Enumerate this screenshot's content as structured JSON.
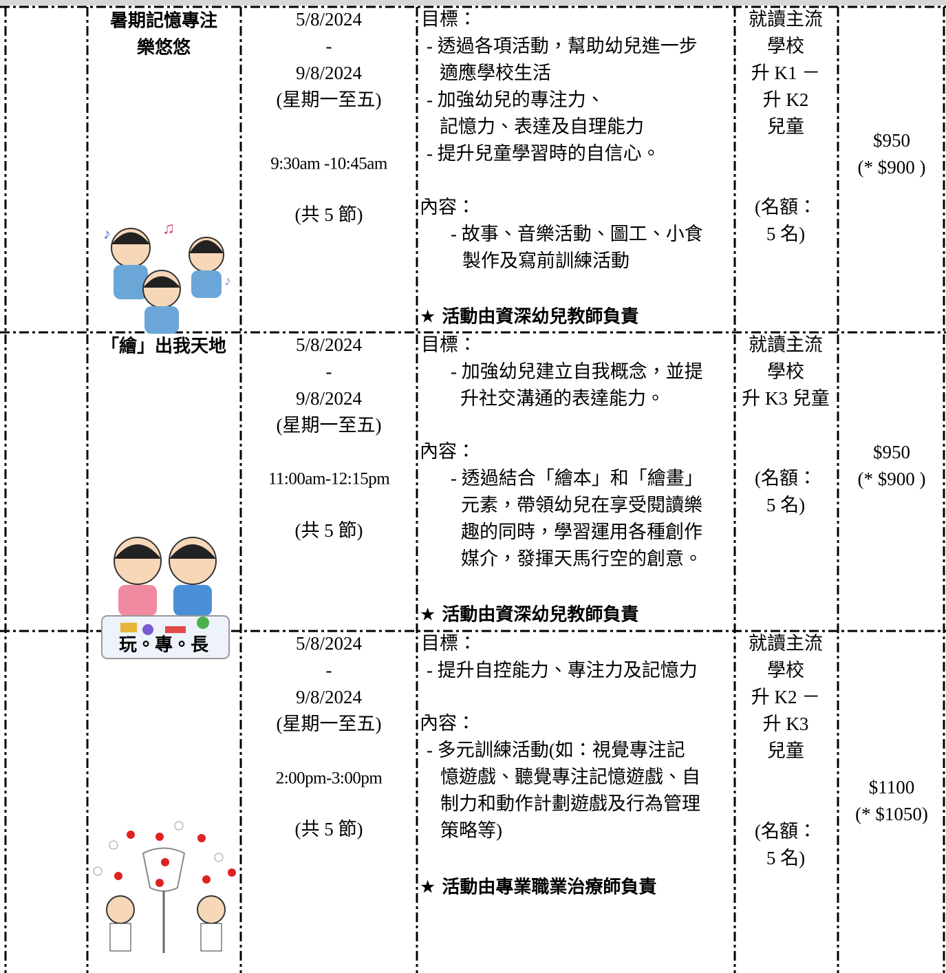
{
  "table": {
    "rows": [
      {
        "name": [
          "暑期記憶專注",
          "樂悠悠"
        ],
        "date": [
          "5/8/2024",
          "-",
          "9/8/2024",
          "(星期一至五)"
        ],
        "time": "9:30am -10:45am",
        "sessions": "(共 5 節)",
        "goals_label": "目標：",
        "goals": [
          "- 透過各項活動，幫助幼兒進一步",
          "適應學校生活",
          "- 加強幼兒的專注力、",
          "記憶力、表達及自理能力",
          "- 提升兒童學習時的自信心。"
        ],
        "content_label": "內容：",
        "content": [
          "- 故事、音樂活動、圖工、小食",
          "製作及寫前訓練活動"
        ],
        "note": "★  活動由資深幼兒教師負責",
        "eligibility": [
          "就讀主流",
          "學校",
          "升 K1 －",
          "升 K2",
          "兒童"
        ],
        "quota": [
          "(名額：",
          "5 名)"
        ],
        "price": "$950",
        "discount_price": "(* $900 )"
      },
      {
        "name": [
          "「繪」出我天地"
        ],
        "date": [
          "5/8/2024",
          "-",
          "9/8/2024",
          "(星期一至五)"
        ],
        "time": "11:00am-12:15pm",
        "sessions": "(共 5 節)",
        "goals_label": "目標：",
        "goals": [
          "- 加強幼兒建立自我概念，並提",
          "升社交溝通的表達能力。"
        ],
        "content_label": "內容：",
        "content": [
          "- 透過結合「繪本」和「繪畫」",
          "元素，帶領幼兒在享受閱讀樂",
          "趣的同時，學習運用各種創作",
          "媒介，發揮天馬行空的創意。"
        ],
        "note": "★  活動由資深幼兒教師負責",
        "eligibility": [
          "就讀主流",
          "學校",
          "升 K3 兒童"
        ],
        "quota": [
          "(名額：",
          "5 名)"
        ],
        "price": "$950",
        "discount_price": "(* $900 )"
      },
      {
        "name": [
          "玩。專。長"
        ],
        "date": [
          "5/8/2024",
          "-",
          "9/8/2024",
          "(星期一至五)"
        ],
        "time": "2:00pm-3:00pm",
        "sessions": "(共 5 節)",
        "goals_label": "目標：",
        "goals": [
          "- 提升自控能力、專注力及記憶力"
        ],
        "content_label": "內容：",
        "content": [
          "- 多元訓練活動(如：視覺專注記",
          "憶遊戲、聽覺專注記憶遊戲、自",
          "制力和動作計劃遊戲及行為管理",
          "策略等)"
        ],
        "note": "★  活動由專業職業治療師負責",
        "eligibility": [
          "就讀主流",
          "學校",
          "升 K2 －",
          "升 K3",
          "兒童"
        ],
        "quota": [
          "(名額：",
          "5 名)"
        ],
        "price": "$1100",
        "discount_price": "(* $1050)"
      }
    ]
  }
}
